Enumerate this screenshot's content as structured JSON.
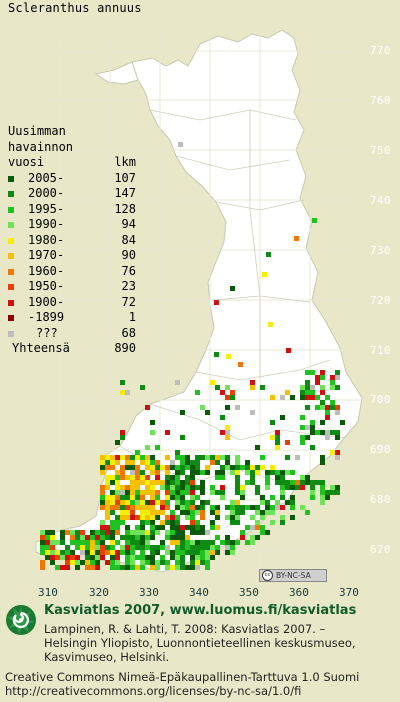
{
  "title": "Scleranthus annuus",
  "legend": {
    "header": [
      "Uusimman",
      "havainnon",
      "vuosi"
    ],
    "count_header": "lkm",
    "rows": [
      {
        "label": "2005-",
        "count": "107",
        "color": "#0a5a0a"
      },
      {
        "label": "2000-",
        "count": "147",
        "color": "#0f8a14"
      },
      {
        "label": "1995-",
        "count": "128",
        "color": "#1fc21f"
      },
      {
        "label": "1990-",
        "count": "94",
        "color": "#6ee35a"
      },
      {
        "label": "1980-",
        "count": "84",
        "color": "#f7ef00"
      },
      {
        "label": "1970-",
        "count": "90",
        "color": "#f5c000"
      },
      {
        "label": "1960-",
        "count": "76",
        "color": "#f07800"
      },
      {
        "label": "1950-",
        "count": "23",
        "color": "#e84000"
      },
      {
        "label": "1900-",
        "count": "72",
        "color": "#d01010"
      },
      {
        "label": "-1899",
        "count": "1",
        "color": "#8a0000"
      },
      {
        "label": "???",
        "count": "68",
        "color": "#bdbdbd"
      }
    ],
    "total_label": "Yhteensä",
    "total_count": "890"
  },
  "y_ticks": [
    "770",
    "760",
    "750",
    "740",
    "730",
    "720",
    "710",
    "700",
    "690",
    "680",
    "670"
  ],
  "x_ticks": [
    "310",
    "320",
    "330",
    "340",
    "350",
    "360",
    "370"
  ],
  "license_badge": "BY-NC-SA",
  "footer": {
    "title": "Kasviatlas 2007, www.luomus.fi/kasviatlas",
    "reference": [
      "Lampinen, R. & Lahti, T. 2008: Kasviatlas 2007. –",
      "Helsingin Yliopisto, Luonnontieteellinen keskusmuseo,",
      "Kasvimuseo, Helsinki."
    ],
    "license": [
      "Creative Commons Nimeä-Epäkaupallinen-Tarttuva 1.0 Suomi",
      "http://creativecommons.org/licenses/by-nc-sa/1.0/fi"
    ]
  },
  "colors": {
    "background": "#e8e8c8",
    "land": "#ffffff",
    "grid": "#e0e0c8",
    "border": "#c8c8b0",
    "title_green": "#115c2a"
  }
}
